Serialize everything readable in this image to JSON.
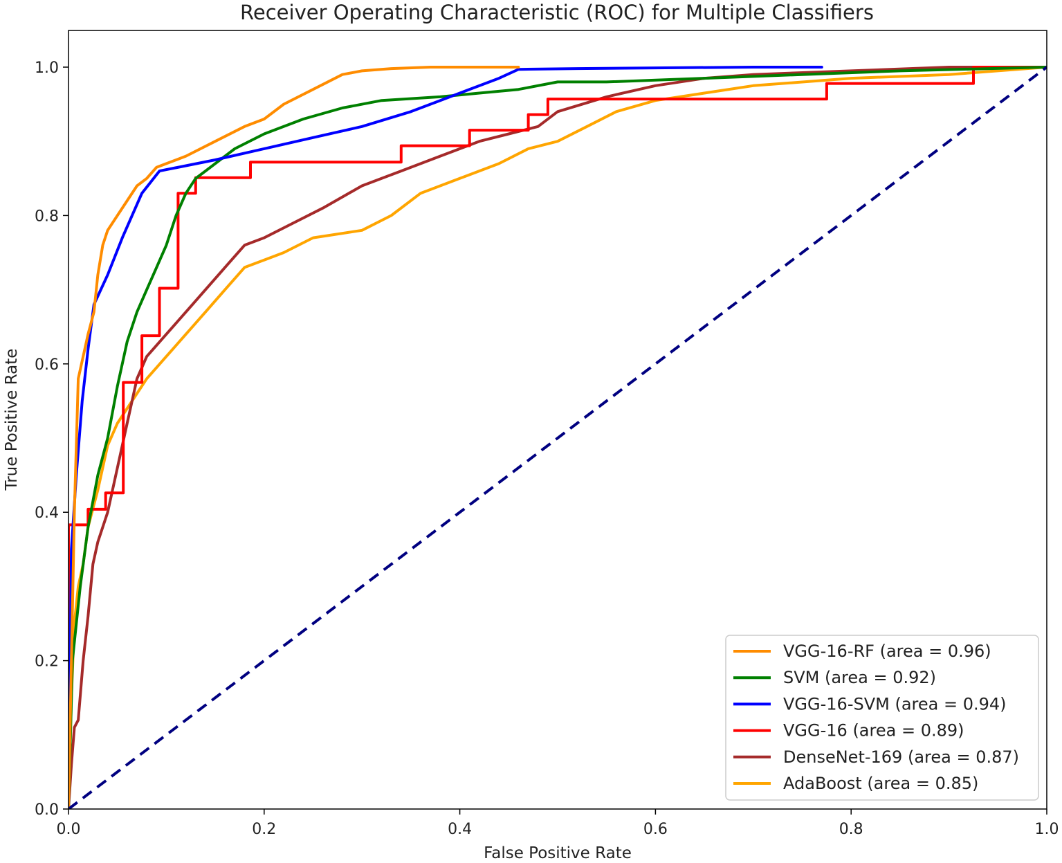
{
  "chart_data": {
    "type": "line",
    "title": "Receiver Operating Characteristic (ROC) for Multiple Classifiers",
    "xlabel": "False Positive Rate",
    "ylabel": "True Positive Rate",
    "xlim": [
      0.0,
      1.0
    ],
    "ylim": [
      0.0,
      1.05
    ],
    "xticks": [
      0.0,
      0.2,
      0.4,
      0.6,
      0.8,
      1.0
    ],
    "xtick_labels": [
      "0.0",
      "0.2",
      "0.4",
      "0.6",
      "0.8",
      "1.0"
    ],
    "yticks": [
      0.0,
      0.2,
      0.4,
      0.6,
      0.8,
      1.0
    ],
    "ytick_labels": [
      "0.0",
      "0.2",
      "0.4",
      "0.6",
      "0.8",
      "1.0"
    ],
    "grid": false,
    "legend_position": "lower-right",
    "series": [
      {
        "name": "VGG-16-RF",
        "label": "VGG-16-RF (area = 0.96)",
        "color": "#ff8c00",
        "dashed": false,
        "x": [
          0,
          0.003,
          0.006,
          0.01,
          0.015,
          0.02,
          0.026,
          0.03,
          0.035,
          0.04,
          0.05,
          0.06,
          0.07,
          0.08,
          0.09,
          0.1,
          0.12,
          0.15,
          0.18,
          0.2,
          0.22,
          0.25,
          0.28,
          0.3,
          0.33,
          0.37,
          0.4,
          0.46
        ],
        "y": [
          0,
          0.2,
          0.4,
          0.58,
          0.61,
          0.64,
          0.67,
          0.72,
          0.76,
          0.78,
          0.8,
          0.82,
          0.84,
          0.85,
          0.865,
          0.87,
          0.88,
          0.9,
          0.92,
          0.93,
          0.95,
          0.97,
          0.99,
          0.995,
          0.998,
          1.0,
          1.0,
          1.0
        ]
      },
      {
        "name": "SVM",
        "label": "SVM (area = 0.92)",
        "color": "#008000",
        "dashed": false,
        "x": [
          0,
          0.004,
          0.008,
          0.012,
          0.02,
          0.03,
          0.04,
          0.05,
          0.06,
          0.07,
          0.08,
          0.09,
          0.1,
          0.11,
          0.12,
          0.13,
          0.14,
          0.15,
          0.17,
          0.2,
          0.24,
          0.28,
          0.32,
          0.38,
          0.42,
          0.46,
          0.5,
          0.55,
          0.65,
          0.75,
          0.85,
          1.0
        ],
        "y": [
          0,
          0.2,
          0.25,
          0.3,
          0.38,
          0.45,
          0.5,
          0.57,
          0.63,
          0.67,
          0.7,
          0.73,
          0.76,
          0.8,
          0.83,
          0.85,
          0.86,
          0.87,
          0.89,
          0.91,
          0.93,
          0.945,
          0.955,
          0.96,
          0.965,
          0.97,
          0.98,
          0.98,
          0.985,
          0.99,
          0.995,
          1.0
        ]
      },
      {
        "name": "VGG-16-SVM",
        "label": "VGG-16-SVM (area = 0.94)",
        "color": "#0000ff",
        "dashed": false,
        "x": [
          0,
          0.003,
          0.008,
          0.014,
          0.02,
          0.026,
          0.04,
          0.055,
          0.075,
          0.093,
          0.15,
          0.2,
          0.25,
          0.3,
          0.35,
          0.4,
          0.44,
          0.46,
          0.52,
          0.6,
          0.7,
          0.77
        ],
        "y": [
          0,
          0.35,
          0.45,
          0.55,
          0.62,
          0.68,
          0.72,
          0.77,
          0.83,
          0.86,
          0.875,
          0.89,
          0.905,
          0.92,
          0.94,
          0.965,
          0.985,
          0.997,
          0.998,
          0.999,
          1.0,
          1.0
        ]
      },
      {
        "name": "VGG-16",
        "label": "VGG-16 (area = 0.89)",
        "color": "#ff0000",
        "dashed": false,
        "x": [
          0,
          0,
          0.02,
          0.02,
          0.038,
          0.038,
          0.056,
          0.056,
          0.075,
          0.075,
          0.093,
          0.093,
          0.112,
          0.112,
          0.13,
          0.13,
          0.186,
          0.186,
          0.34,
          0.34,
          0.41,
          0.41,
          0.47,
          0.47,
          0.49,
          0.49,
          0.775,
          0.775,
          0.925,
          0.925,
          1.0
        ],
        "y": [
          0,
          0.383,
          0.383,
          0.404,
          0.404,
          0.426,
          0.426,
          0.575,
          0.575,
          0.638,
          0.638,
          0.702,
          0.702,
          0.83,
          0.83,
          0.851,
          0.851,
          0.872,
          0.872,
          0.894,
          0.894,
          0.915,
          0.915,
          0.936,
          0.936,
          0.957,
          0.957,
          0.978,
          0.978,
          1.0,
          1.0
        ]
      },
      {
        "name": "DenseNet-169",
        "label": "DenseNet-169 (area = 0.87)",
        "color": "#a52a2a",
        "dashed": false,
        "x": [
          0,
          0.003,
          0.006,
          0.01,
          0.015,
          0.02,
          0.025,
          0.03,
          0.04,
          0.05,
          0.06,
          0.07,
          0.08,
          0.1,
          0.12,
          0.14,
          0.16,
          0.18,
          0.2,
          0.23,
          0.26,
          0.3,
          0.34,
          0.38,
          0.42,
          0.45,
          0.48,
          0.5,
          0.55,
          0.6,
          0.65,
          0.7,
          0.8,
          0.9,
          1.0
        ],
        "y": [
          0,
          0.06,
          0.11,
          0.12,
          0.2,
          0.26,
          0.33,
          0.36,
          0.4,
          0.46,
          0.52,
          0.58,
          0.61,
          0.64,
          0.67,
          0.7,
          0.73,
          0.76,
          0.77,
          0.79,
          0.81,
          0.84,
          0.86,
          0.88,
          0.9,
          0.91,
          0.92,
          0.94,
          0.96,
          0.975,
          0.985,
          0.99,
          0.995,
          1.0,
          1.0
        ]
      },
      {
        "name": "AdaBoost",
        "label": "AdaBoost (area = 0.85)",
        "color": "#ffa500",
        "dashed": false,
        "x": [
          0,
          0.003,
          0.006,
          0.01,
          0.015,
          0.02,
          0.03,
          0.04,
          0.05,
          0.06,
          0.08,
          0.1,
          0.12,
          0.14,
          0.16,
          0.18,
          0.2,
          0.22,
          0.25,
          0.3,
          0.33,
          0.36,
          0.4,
          0.44,
          0.47,
          0.5,
          0.53,
          0.56,
          0.6,
          0.65,
          0.7,
          0.8,
          0.9,
          1.0
        ],
        "y": [
          0,
          0.15,
          0.25,
          0.3,
          0.33,
          0.38,
          0.43,
          0.49,
          0.52,
          0.54,
          0.58,
          0.61,
          0.64,
          0.67,
          0.7,
          0.73,
          0.74,
          0.75,
          0.77,
          0.78,
          0.8,
          0.83,
          0.85,
          0.87,
          0.89,
          0.9,
          0.92,
          0.94,
          0.955,
          0.965,
          0.975,
          0.985,
          0.99,
          1.0
        ]
      },
      {
        "name": "chance",
        "label": "",
        "color": "#000080",
        "dashed": true,
        "x": [
          0,
          1
        ],
        "y": [
          0,
          1
        ]
      }
    ]
  }
}
